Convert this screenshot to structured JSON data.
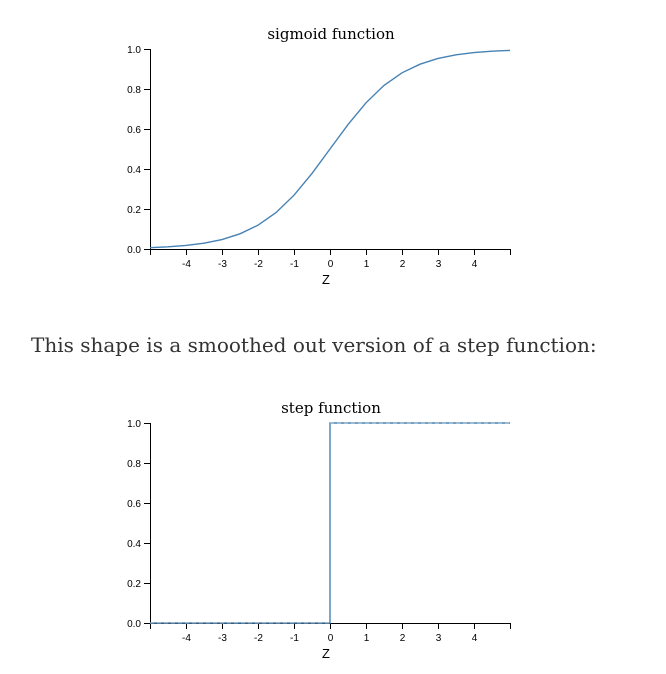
{
  "chart_data": [
    {
      "type": "line",
      "title": "sigmoid function",
      "xlabel": "Z",
      "ylabel": "",
      "xlim": [
        -5,
        5
      ],
      "ylim": [
        0,
        1
      ],
      "grid": false,
      "x_ticks": [
        -4,
        -3,
        -2,
        -1,
        0,
        1,
        2,
        3,
        4
      ],
      "y_ticks": [
        "0.0",
        "0.2",
        "0.4",
        "0.6",
        "0.8",
        "1.0"
      ],
      "series": [
        {
          "color": "#4682b4",
          "x": [
            -5,
            -4.5,
            -4,
            -3.5,
            -3,
            -2.5,
            -2,
            -1.5,
            -1,
            -0.5,
            0,
            0.5,
            1,
            1.5,
            2,
            2.5,
            3,
            3.5,
            4,
            4.5,
            5
          ],
          "y": [
            0.0067,
            0.011,
            0.018,
            0.029,
            0.047,
            0.076,
            0.119,
            0.182,
            0.269,
            0.378,
            0.5,
            0.622,
            0.731,
            0.818,
            0.881,
            0.924,
            0.953,
            0.971,
            0.982,
            0.989,
            0.993
          ]
        }
      ]
    },
    {
      "type": "line",
      "title": "step function",
      "xlabel": "Z",
      "ylabel": "",
      "xlim": [
        -5,
        5
      ],
      "ylim": [
        0,
        1
      ],
      "grid": false,
      "x_ticks": [
        -4,
        -3,
        -2,
        -1,
        0,
        1,
        2,
        3,
        4
      ],
      "y_ticks": [
        "0.0",
        "0.2",
        "0.4",
        "0.6",
        "0.8",
        "1.0"
      ],
      "series": [
        {
          "color": "#4682b4",
          "x": [
            -5,
            0,
            0,
            5
          ],
          "y": [
            0,
            0,
            1,
            1
          ]
        }
      ]
    }
  ],
  "caption": "This shape is a smoothed out version of a step function:"
}
